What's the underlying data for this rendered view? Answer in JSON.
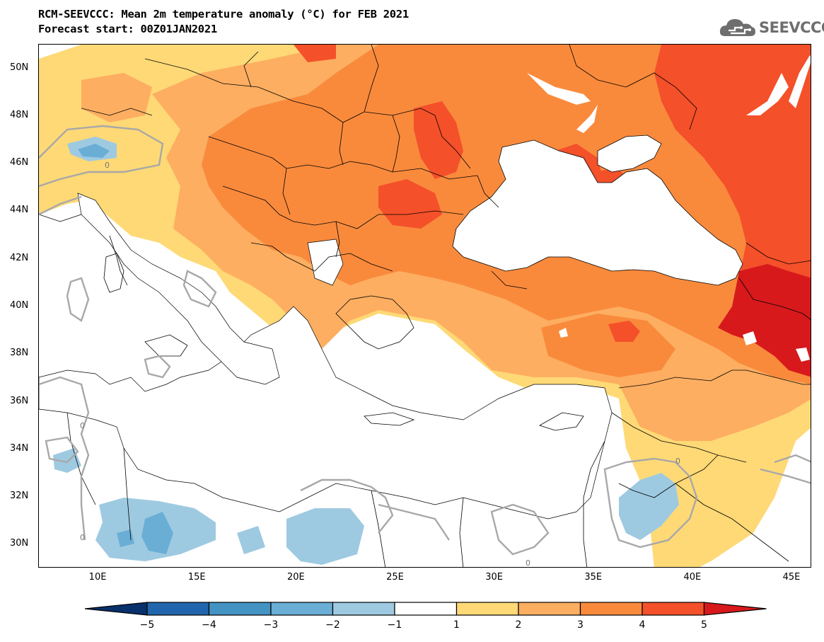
{
  "header": {
    "title_line1": "RCM-SEEVCCC: Mean 2m temperature anomaly (°C) for FEB 2021",
    "title_line2": "Forecast start: 00Z01JAN2021",
    "logo_text": "SEEVCCC",
    "logo_icon": "cloud-icon"
  },
  "map": {
    "lat_range": [
      29,
      51
    ],
    "lon_range": [
      7,
      46
    ],
    "lat_labels": [
      "50N",
      "48N",
      "46N",
      "44N",
      "42N",
      "40N",
      "38N",
      "36N",
      "34N",
      "32N",
      "30N"
    ],
    "lon_labels": [
      "10E",
      "15E",
      "20E",
      "25E",
      "30E",
      "35E",
      "40E",
      "45E"
    ],
    "contour_label": "0"
  },
  "colorbar": {
    "colors": [
      "#08306b",
      "#2166ac",
      "#4393c3",
      "#6aaed6",
      "#9ecae1",
      "#ffffff",
      "#fed976",
      "#fdae61",
      "#f98a3c",
      "#f4502a",
      "#d7191c"
    ],
    "labels": [
      "−5",
      "−4",
      "−3",
      "−2",
      "−1",
      "1",
      "2",
      "3",
      "4",
      "5"
    ]
  }
}
